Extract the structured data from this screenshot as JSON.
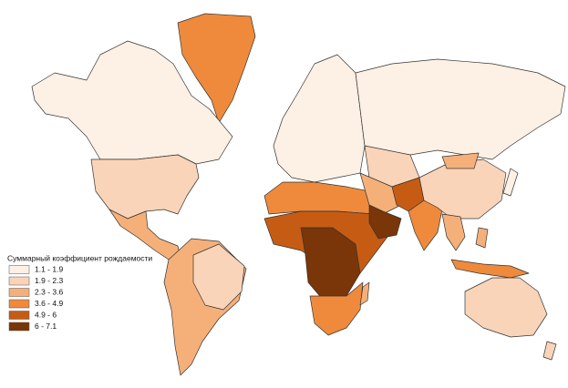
{
  "legend": {
    "title": "Суммарный коэффициент рождаемости",
    "items": [
      {
        "label": "1.1 - 1.9",
        "color": "#fdf0e4"
      },
      {
        "label": "1.9 - 2.3",
        "color": "#fad4b8"
      },
      {
        "label": "2.3 - 3.6",
        "color": "#f5b07a"
      },
      {
        "label": "3.6 - 4.9",
        "color": "#ef8a3c"
      },
      {
        "label": "4.9 - 6",
        "color": "#c65c14"
      },
      {
        "label": "6 - 7.1",
        "color": "#7a3508"
      }
    ]
  }
}
